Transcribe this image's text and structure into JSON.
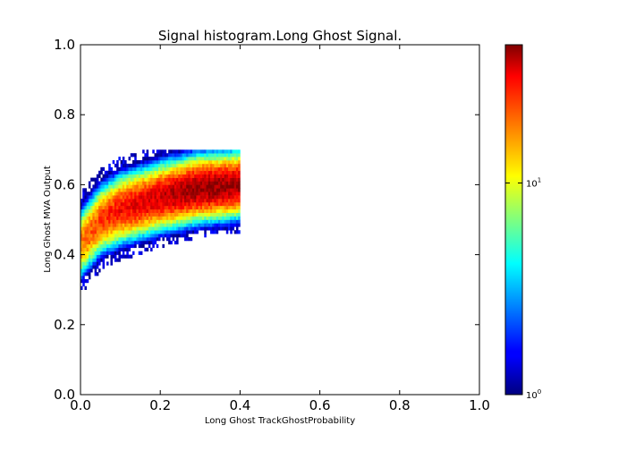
{
  "chart_data": {
    "type": "heatmap",
    "title": "Signal histogram.Long Ghost Signal.",
    "xlabel": "Long Ghost TrackGhostProbability",
    "ylabel": "Long Ghost MVA Output",
    "xlim": [
      0.0,
      1.0
    ],
    "ylim": [
      0.0,
      1.0
    ],
    "x_ticks": [
      {
        "value": 0.0,
        "label": "0.0"
      },
      {
        "value": 0.2,
        "label": "0.2"
      },
      {
        "value": 0.4,
        "label": "0.4"
      },
      {
        "value": 0.6,
        "label": "0.6"
      },
      {
        "value": 0.8,
        "label": "0.8"
      },
      {
        "value": 1.0,
        "label": "1.0"
      }
    ],
    "y_ticks": [
      {
        "value": 0.0,
        "label": "0.0"
      },
      {
        "value": 0.2,
        "label": "0.2"
      },
      {
        "value": 0.4,
        "label": "0.4"
      },
      {
        "value": 0.6,
        "label": "0.6"
      },
      {
        "value": 0.8,
        "label": "0.8"
      },
      {
        "value": 1.0,
        "label": "1.0"
      }
    ],
    "grid": false,
    "colormap": "jet",
    "colorbar": {
      "scale": "log",
      "range": [
        1,
        45
      ],
      "ticks": [
        {
          "value": 1,
          "base": "10",
          "exp": "0"
        },
        {
          "value": 10,
          "base": "10",
          "exp": "1"
        }
      ]
    },
    "bins": {
      "x_bin_width": 0.005,
      "y_bin_width": 0.01,
      "x_range": [
        0.0,
        0.4
      ],
      "y_range": [
        0.3,
        0.7
      ]
    },
    "density_model": {
      "description_source": "estimated from rendered heatmap",
      "ridge_center": [
        [
          0.0,
          0.43
        ],
        [
          0.05,
          0.5
        ],
        [
          0.1,
          0.53
        ],
        [
          0.2,
          0.565
        ],
        [
          0.3,
          0.59
        ],
        [
          0.4,
          0.6
        ]
      ],
      "ridge_halfwidth": [
        [
          0.0,
          0.07
        ],
        [
          0.1,
          0.07
        ],
        [
          0.4,
          0.065
        ]
      ],
      "peak_counts": [
        [
          0.0,
          18
        ],
        [
          0.1,
          28
        ],
        [
          0.2,
          34
        ],
        [
          0.3,
          42
        ],
        [
          0.4,
          40
        ]
      ],
      "seed": 7
    }
  }
}
